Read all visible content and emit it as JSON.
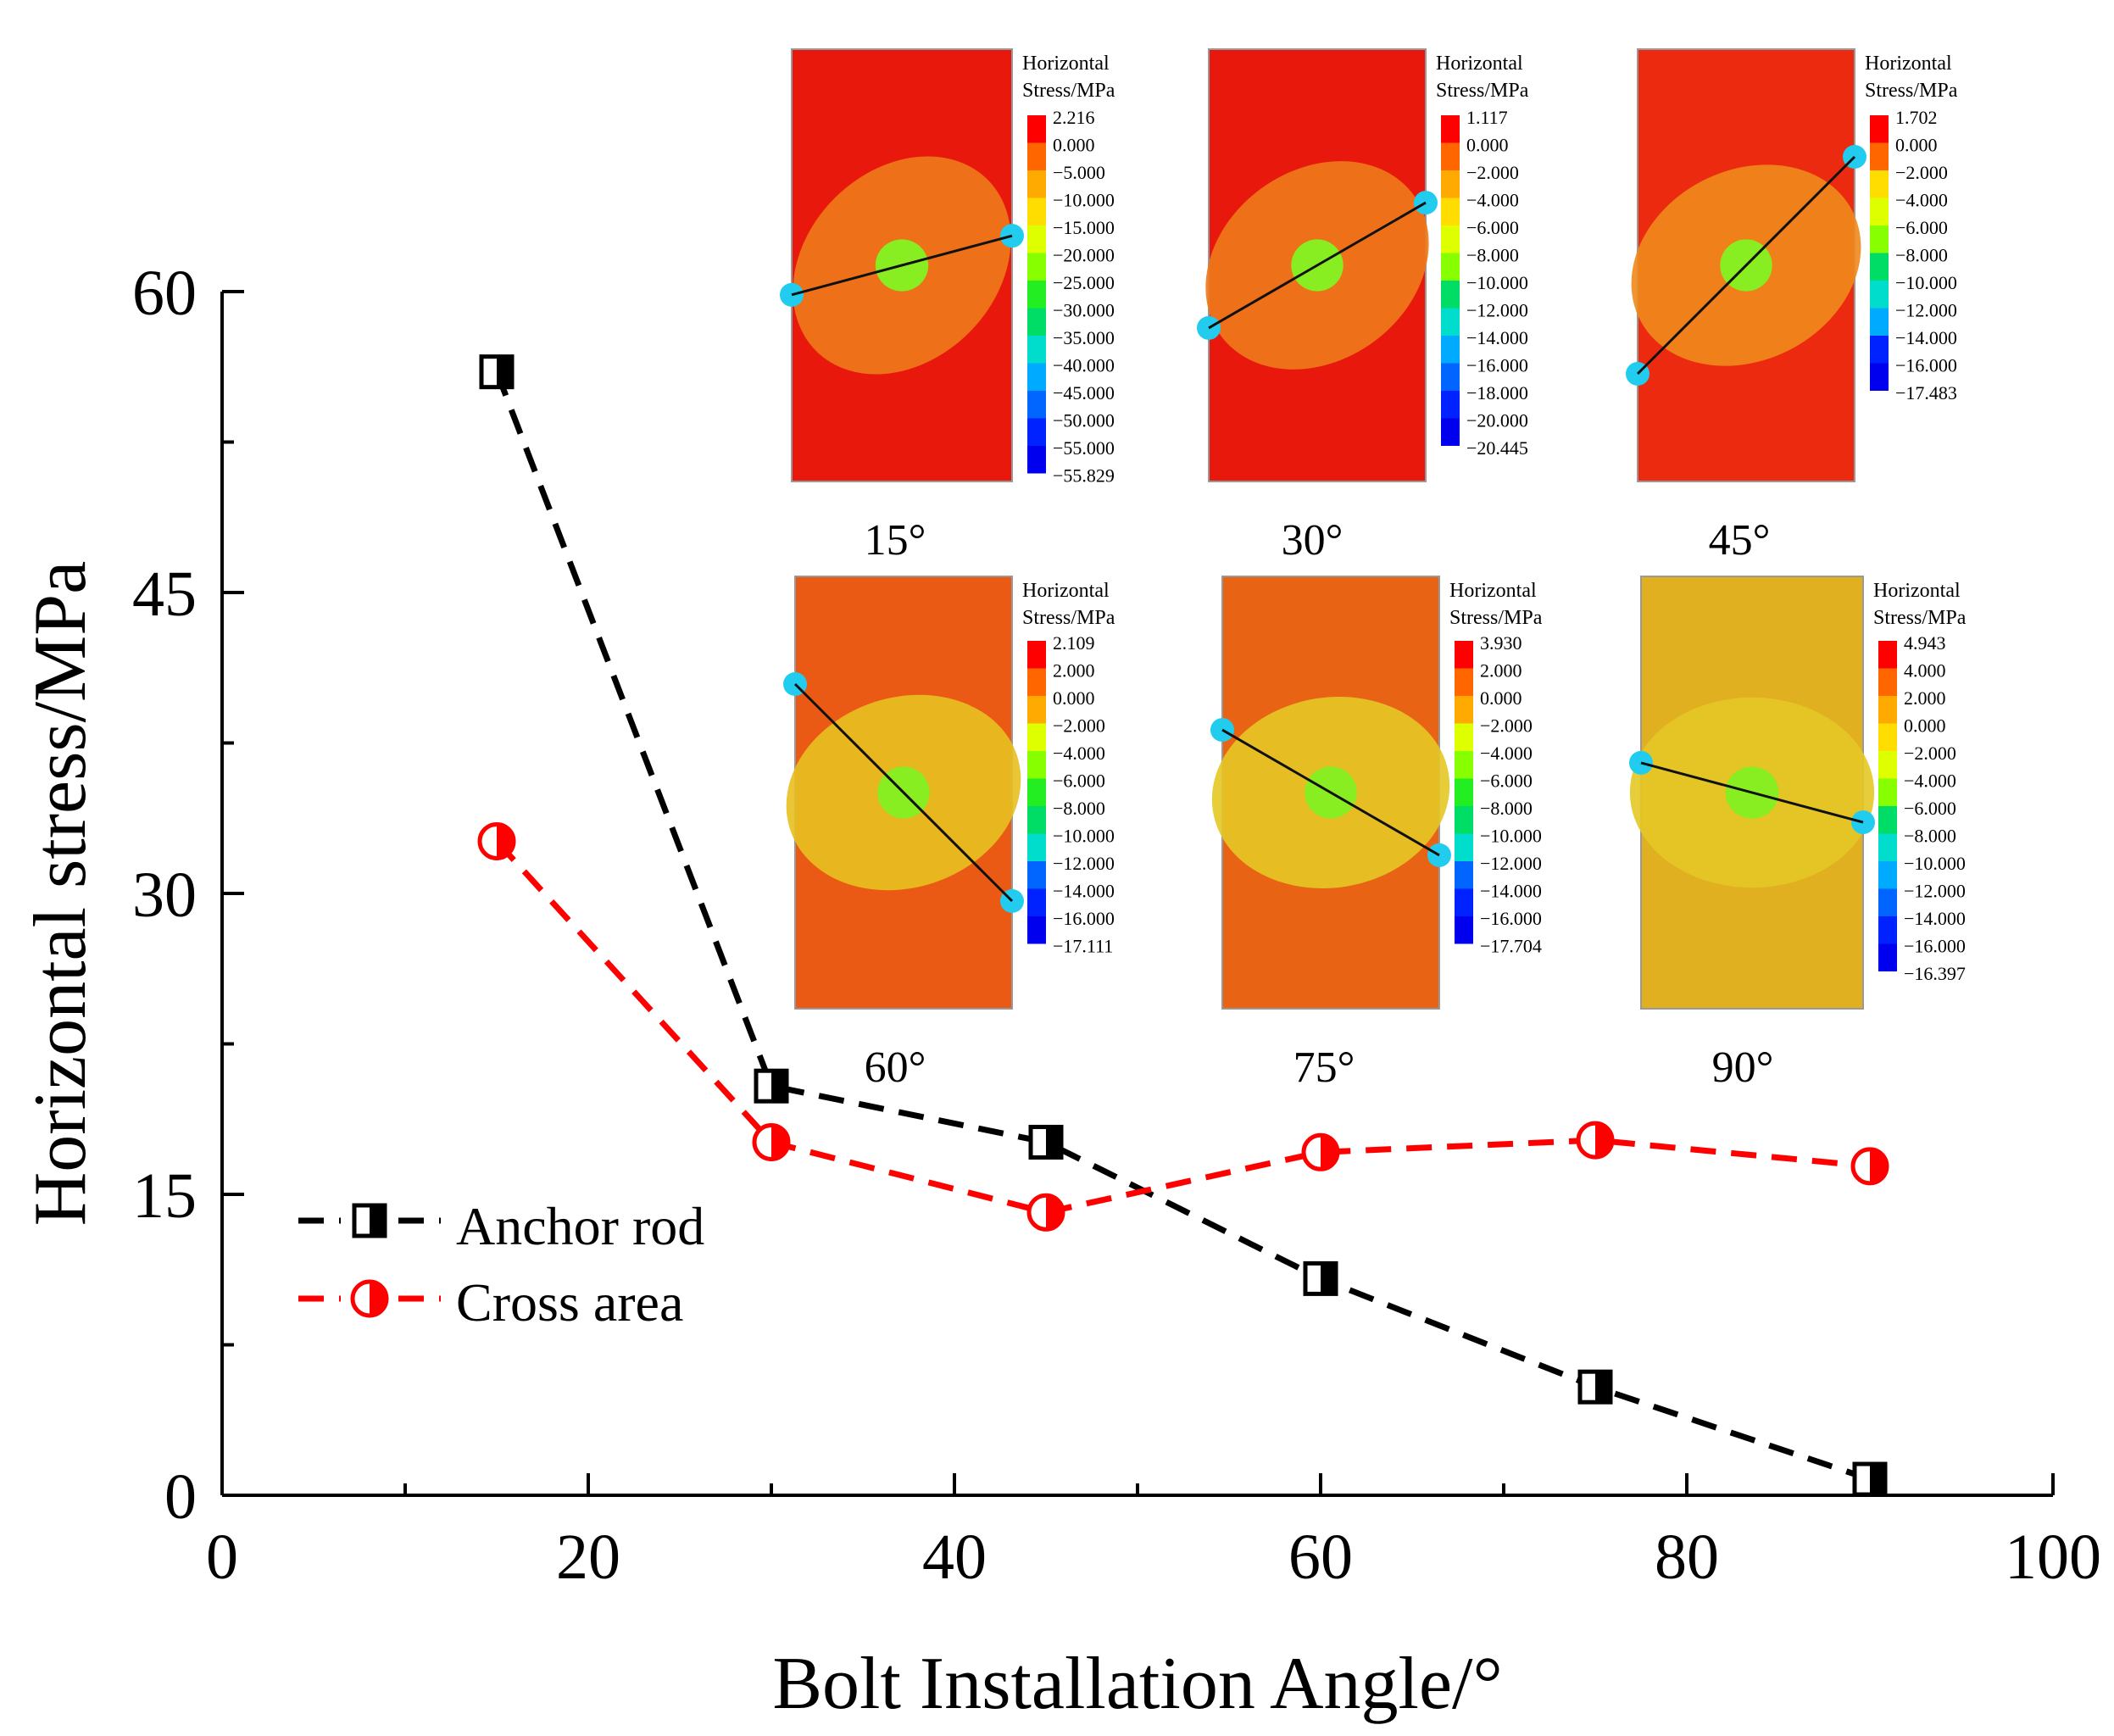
{
  "chart_data": {
    "type": "line",
    "title": "",
    "xlabel": "Bolt Installation Angle/°",
    "ylabel": "Horizontal stress/MPa",
    "xlim": [
      0,
      100
    ],
    "ylim": [
      0,
      60
    ],
    "xticks": [
      0,
      20,
      40,
      60,
      80,
      100
    ],
    "yticks": [
      0,
      15,
      30,
      45,
      60
    ],
    "xtick_labels": [
      "0",
      "20",
      "40",
      "60",
      "80",
      "100"
    ],
    "ytick_labels": [
      "0",
      "15",
      "30",
      45,
      "60"
    ],
    "x": [
      15,
      30,
      45,
      60,
      75,
      90
    ],
    "series": [
      {
        "name": "Anchor rod",
        "color": "#000000",
        "marker": "half-filled-square",
        "values": [
          56.0,
          20.4,
          17.6,
          10.8,
          5.4,
          0.8
        ]
      },
      {
        "name": "Cross area",
        "color": "#ff0000",
        "marker": "half-filled-circle",
        "values": [
          32.6,
          17.6,
          14.1,
          17.1,
          17.7,
          16.4
        ]
      }
    ],
    "legend_position": "lower-left",
    "insets": [
      {
        "label": "15°",
        "legend_title": [
          "Horizontal",
          "Stress/MPa"
        ],
        "angle": 15,
        "scale": [
          "2.216",
          "0.000",
          "−5.000",
          "−10.000",
          "−15.000",
          "−20.000",
          "−25.000",
          "−30.000",
          "−35.000",
          "−40.000",
          "−45.000",
          "−50.000",
          "−55.000",
          "−55.829"
        ]
      },
      {
        "label": "30°",
        "legend_title": [
          "Horizontal",
          "Stress/MPa"
        ],
        "angle": 30,
        "scale": [
          "1.117",
          "0.000",
          "−2.000",
          "−4.000",
          "−6.000",
          "−8.000",
          "−10.000",
          "−12.000",
          "−14.000",
          "−16.000",
          "−18.000",
          "−20.000",
          "−20.445"
        ]
      },
      {
        "label": "45°",
        "legend_title": [
          "Horizontal",
          "Stress/MPa"
        ],
        "angle": 45,
        "scale": [
          "1.702",
          "0.000",
          "−2.000",
          "−4.000",
          "−6.000",
          "−8.000",
          "−10.000",
          "−12.000",
          "−14.000",
          "−16.000",
          "−17.483"
        ]
      },
      {
        "label": "60°",
        "legend_title": [
          "Horizontal",
          "Stress/MPa"
        ],
        "angle": 60,
        "scale": [
          "2.109",
          "2.000",
          "0.000",
          "−2.000",
          "−4.000",
          "−6.000",
          "−8.000",
          "−10.000",
          "−12.000",
          "−14.000",
          "−16.000",
          "−17.111"
        ]
      },
      {
        "label": "75°",
        "legend_title": [
          "Horizontal",
          "Stress/MPa"
        ],
        "angle": 75,
        "scale": [
          "3.930",
          "2.000",
          "0.000",
          "−2.000",
          "−4.000",
          "−6.000",
          "−8.000",
          "−10.000",
          "−12.000",
          "−14.000",
          "−16.000",
          "−17.704"
        ]
      },
      {
        "label": "90°",
        "legend_title": [
          "Horizontal",
          "Stress/MPa"
        ],
        "angle": 90,
        "scale": [
          "4.943",
          "4.000",
          "2.000",
          "0.000",
          "−2.000",
          "−4.000",
          "−6.000",
          "−8.000",
          "−10.000",
          "−12.000",
          "−14.000",
          "−16.000",
          "−16.397"
        ]
      }
    ]
  }
}
